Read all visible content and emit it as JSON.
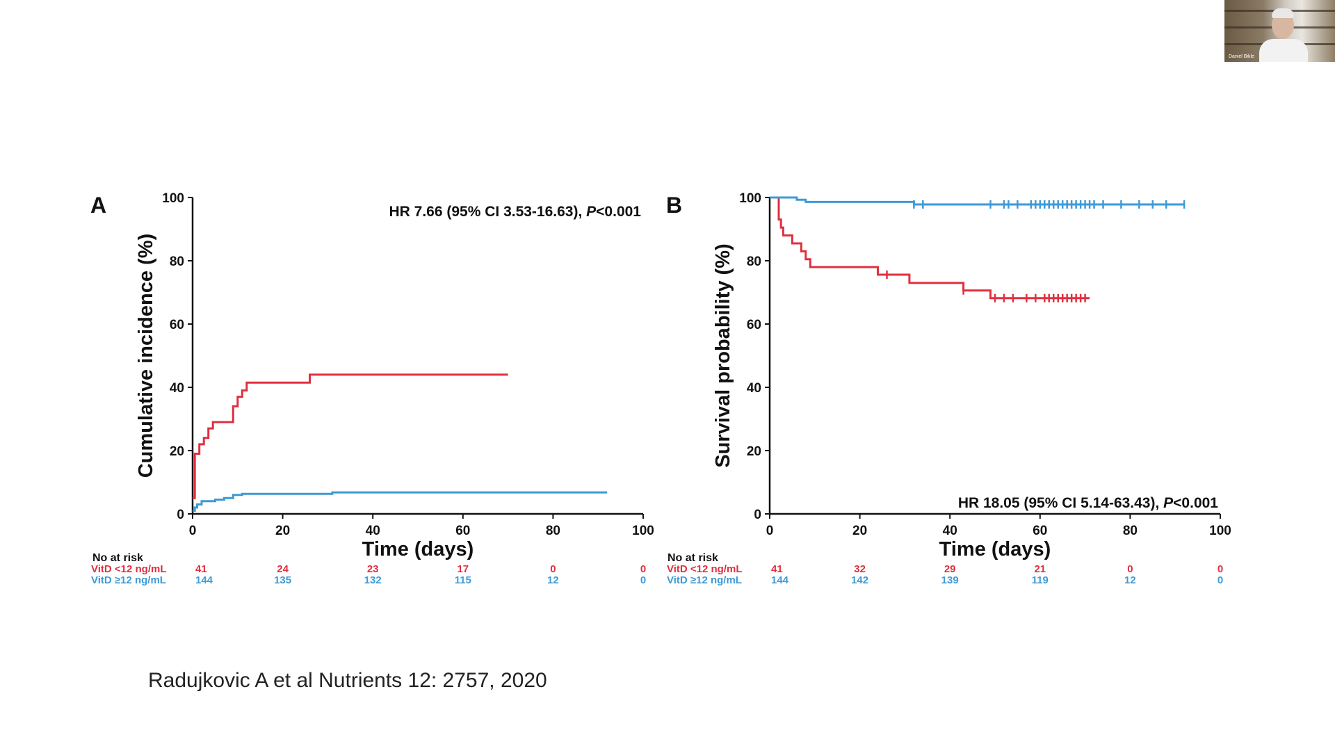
{
  "citation": "Radujkovic A et al Nutrients 12: 2757, 2020",
  "video": {
    "participant_name": "Daniel Bikle"
  },
  "colors": {
    "red": "#e0303f",
    "blue": "#3e9ad6",
    "axis": "#111111"
  },
  "chart_data": [
    {
      "type": "line",
      "panel_label": "A",
      "annotation": {
        "text": "HR 7.66 (95% CI 3.53-16.63), ",
        "italic": "P",
        "tail": "<0.001"
      },
      "xlabel": "Time (days)",
      "ylabel": "Cumulative incidence (%)",
      "xlim": [
        0,
        100
      ],
      "ylim": [
        0,
        100
      ],
      "xticks": [
        0,
        20,
        40,
        60,
        80,
        100
      ],
      "yticks": [
        0,
        20,
        40,
        60,
        80,
        100
      ],
      "series": [
        {
          "name": "VitD <12 ng/mL",
          "color": "#e0303f",
          "x": [
            0,
            0.5,
            0.5,
            1.5,
            1.5,
            2.5,
            2.5,
            3.5,
            3.5,
            4.5,
            4.5,
            5.5,
            5.5,
            9,
            9,
            10,
            10,
            11,
            11,
            12,
            12,
            26,
            26,
            70
          ],
          "y": [
            5,
            5,
            19,
            19,
            22,
            22,
            24,
            24,
            27,
            27,
            29,
            29,
            29,
            29,
            34,
            34,
            37,
            37,
            39,
            39,
            41.5,
            41.5,
            44,
            44
          ]
        },
        {
          "name": "VitD ≥12 ng/mL",
          "color": "#3e9ad6",
          "x": [
            0,
            0.5,
            0.5,
            1,
            1,
            2,
            2,
            5,
            5,
            7,
            7,
            9,
            9,
            11,
            11,
            31,
            31,
            92
          ],
          "y": [
            1,
            1,
            2,
            2,
            3,
            3,
            4,
            4,
            4.5,
            4.5,
            5,
            5,
            6,
            6,
            6.3,
            6.3,
            6.8,
            6.8
          ]
        }
      ],
      "risk_table": {
        "title": "No at risk",
        "times": [
          0,
          20,
          40,
          60,
          80,
          100
        ],
        "rows": [
          {
            "label": "VitD <12 ng/mL",
            "color": "#e0303f",
            "values": [
              "41",
              "24",
              "23",
              "17",
              "0",
              "0"
            ]
          },
          {
            "label": "VitD ≥12 ng/mL",
            "color": "#3e9ad6",
            "values": [
              "144",
              "135",
              "132",
              "115",
              "12",
              "0"
            ]
          }
        ]
      }
    },
    {
      "type": "line",
      "panel_label": "B",
      "annotation": {
        "text": "HR 18.05 (95% CI 5.14-63.43), ",
        "italic": "P",
        "tail": "<0.001"
      },
      "xlabel": "Time (days)",
      "ylabel": "Survival probability (%)",
      "xlim": [
        0,
        100
      ],
      "ylim": [
        0,
        100
      ],
      "xticks": [
        0,
        20,
        40,
        60,
        80,
        100
      ],
      "yticks": [
        0,
        20,
        40,
        60,
        80,
        100
      ],
      "series": [
        {
          "name": "VitD <12 ng/mL",
          "color": "#e0303f",
          "x": [
            0,
            2,
            2,
            2.5,
            2.5,
            3,
            3,
            4,
            4,
            5,
            5,
            7,
            7,
            8,
            8,
            9,
            9,
            10,
            10,
            11,
            11,
            24,
            24,
            31,
            31,
            43,
            43,
            49,
            49,
            71
          ],
          "y": [
            100,
            100,
            93,
            93,
            90.5,
            90.5,
            88,
            88,
            88,
            88,
            85.5,
            85.5,
            83,
            83,
            80.5,
            80.5,
            78,
            78,
            78,
            78,
            78,
            78,
            75.6,
            75.6,
            73,
            73,
            70.6,
            70.6,
            68.2,
            68.2
          ],
          "censors": [
            26,
            43,
            50,
            52,
            54,
            57,
            59,
            61,
            62,
            63,
            64,
            65,
            66,
            67,
            68,
            69,
            70
          ]
        },
        {
          "name": "VitD ≥12 ng/mL",
          "color": "#3e9ad6",
          "x": [
            0,
            6,
            6,
            8,
            8,
            32,
            32,
            92
          ],
          "y": [
            100,
            100,
            99.3,
            99.3,
            98.6,
            98.6,
            97.8,
            97.8
          ],
          "censors": [
            32,
            34,
            49,
            52,
            53,
            55,
            58,
            59,
            60,
            61,
            62,
            63,
            64,
            65,
            66,
            67,
            68,
            69,
            70,
            71,
            72,
            74,
            78,
            82,
            85,
            88,
            92
          ]
        }
      ],
      "risk_table": {
        "title": "No at risk",
        "times": [
          0,
          20,
          40,
          60,
          80,
          100
        ],
        "rows": [
          {
            "label": "VitD <12 ng/mL",
            "color": "#e0303f",
            "values": [
              "41",
              "32",
              "29",
              "21",
              "0",
              "0"
            ]
          },
          {
            "label": "VitD ≥12 ng/mL",
            "color": "#3e9ad6",
            "values": [
              "144",
              "142",
              "139",
              "119",
              "12",
              "0"
            ]
          }
        ]
      }
    }
  ]
}
